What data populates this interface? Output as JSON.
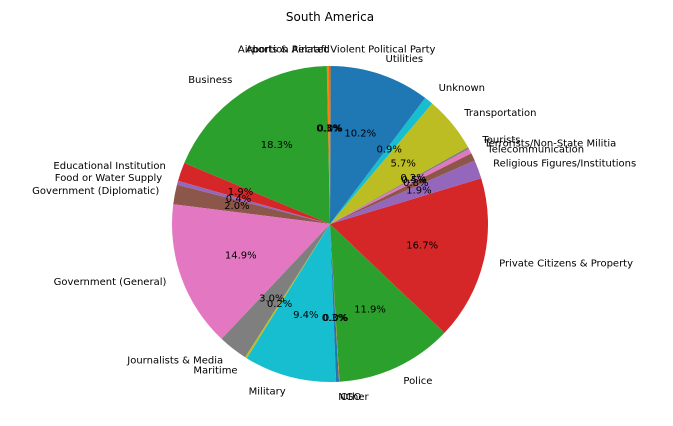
{
  "chart_data": {
    "type": "pie",
    "title": "South America",
    "start_angle_deg": 90,
    "direction": "counterclockwise",
    "slices": [
      {
        "label": "Abortion Related",
        "value": 0.05,
        "pct_label": "0.1%",
        "color": "#1f77b4"
      },
      {
        "label": "Airports & Aircraft",
        "value": 0.27,
        "pct_label": "0.3%",
        "color": "#ff7f0e"
      },
      {
        "label": "Business",
        "value": 18.3,
        "pct_label": "18.3%",
        "color": "#2ca02c"
      },
      {
        "label": "Educational Institution",
        "value": 1.9,
        "pct_label": "1.9%",
        "color": "#d62728"
      },
      {
        "label": "Food or Water Supply",
        "value": 0.4,
        "pct_label": "0.4%",
        "color": "#9467bd"
      },
      {
        "label": "Government (Diplomatic)",
        "value": 2.0,
        "pct_label": "2.0%",
        "color": "#8c564b"
      },
      {
        "label": "Government (General)",
        "value": 14.9,
        "pct_label": "14.9%",
        "color": "#e377c2"
      },
      {
        "label": "Journalists & Media",
        "value": 3.0,
        "pct_label": "3.0%",
        "color": "#7f7f7f"
      },
      {
        "label": "Maritime",
        "value": 0.2,
        "pct_label": "0.2%",
        "color": "#bcbd22"
      },
      {
        "label": "Military",
        "value": 9.4,
        "pct_label": "9.4%",
        "color": "#17becf"
      },
      {
        "label": "NGO",
        "value": 0.3,
        "pct_label": "0.3%",
        "color": "#1f77b4"
      },
      {
        "label": "Other",
        "value": 0.05,
        "pct_label": "0.0%",
        "color": "#ff7f0e"
      },
      {
        "label": "Police",
        "value": 11.9,
        "pct_label": "11.9%",
        "color": "#2ca02c"
      },
      {
        "label": "Private Citizens & Property",
        "value": 16.7,
        "pct_label": "16.7%",
        "color": "#d62728"
      },
      {
        "label": "Religious Figures/Institutions",
        "value": 1.9,
        "pct_label": "1.9%",
        "color": "#9467bd"
      },
      {
        "label": "Telecommunication",
        "value": 0.8,
        "pct_label": "0.8%",
        "color": "#8c564b"
      },
      {
        "label": "Terrorists/Non-State Militia",
        "value": 0.5,
        "pct_label": "0.5%",
        "color": "#e377c2"
      },
      {
        "label": "Tourists",
        "value": 0.2,
        "pct_label": "0.2%",
        "color": "#7f7f7f"
      },
      {
        "label": "Transportation",
        "value": 5.7,
        "pct_label": "5.7%",
        "color": "#bcbd22"
      },
      {
        "label": "Unknown",
        "value": 0.9,
        "pct_label": "0.9%",
        "color": "#17becf"
      },
      {
        "label": "Utilities",
        "value": 10.2,
        "pct_label": "10.2%",
        "color": "#1f77b4"
      },
      {
        "label": "Violent Political Party",
        "value": 0.05,
        "pct_label": "0.0%",
        "color": "#ff7f0e"
      }
    ]
  }
}
